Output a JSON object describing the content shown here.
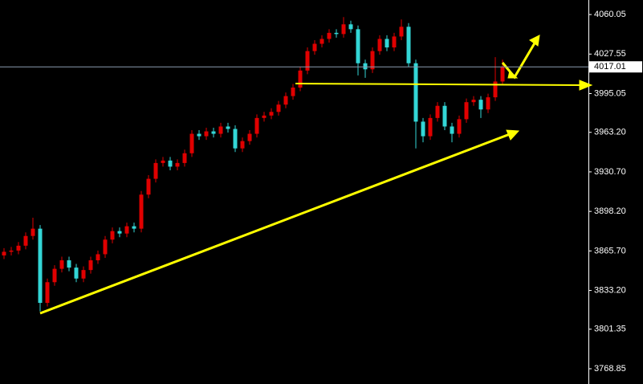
{
  "chart_data": {
    "type": "candlestick",
    "up_color": "#e00000",
    "down_color": "#33d6d6",
    "open": [
      3862,
      3865,
      3866,
      3870,
      3878,
      3884,
      3823,
      3840,
      3851,
      3858,
      3852,
      3843,
      3850,
      3858,
      3863,
      3875,
      3882,
      3880,
      3886,
      3884,
      3912,
      3925,
      3938,
      3940,
      3935,
      3938,
      3946,
      3962,
      3960,
      3964,
      3962,
      3968,
      3966,
      3950,
      3956,
      3962,
      3975,
      3977,
      3980,
      3986,
      3993,
      4000,
      4014,
      4030,
      4036,
      4040,
      4045,
      4044,
      4052,
      4048,
      4020,
      4015,
      4030,
      4040,
      4033,
      4042,
      4050,
      4020,
      3972,
      3960,
      3975,
      3985,
      3968,
      3962,
      3974,
      3988,
      3990,
      3982,
      3992,
      4005
    ],
    "high": [
      3868,
      3869,
      3873,
      3881,
      3893,
      3887,
      3843,
      3854,
      3861,
      3861,
      3855,
      3853,
      3861,
      3866,
      3878,
      3885,
      3885,
      3889,
      3889,
      3915,
      3928,
      3941,
      3943,
      3943,
      3941,
      3949,
      3965,
      3965,
      3967,
      3967,
      3971,
      3971,
      3969,
      3959,
      3965,
      3978,
      3980,
      3983,
      3989,
      3996,
      4003,
      4017,
      4033,
      4039,
      4043,
      4048,
      4048,
      4058,
      4055,
      4051,
      4023,
      4033,
      4043,
      4043,
      4045,
      4056,
      4053,
      4023,
      3975,
      3978,
      3988,
      3988,
      3971,
      3977,
      3991,
      3993,
      3993,
      3995,
      4025,
      4023
    ],
    "low": [
      3859,
      3862,
      3863,
      3867,
      3875,
      3816,
      3820,
      3837,
      3848,
      3849,
      3840,
      3840,
      3847,
      3855,
      3860,
      3872,
      3877,
      3877,
      3881,
      3881,
      3909,
      3922,
      3935,
      3932,
      3932,
      3935,
      3943,
      3957,
      3957,
      3959,
      3959,
      3963,
      3947,
      3947,
      3953,
      3959,
      3972,
      3974,
      3977,
      3983,
      3990,
      3997,
      4011,
      4027,
      4033,
      4037,
      4041,
      4041,
      4045,
      4010,
      4008,
      4012,
      4027,
      4030,
      4030,
      4039,
      4017,
      3950,
      3955,
      3957,
      3972,
      3965,
      3955,
      3959,
      3971,
      3985,
      3975,
      3979,
      3989,
      4002
    ],
    "close": [
      3865,
      3866,
      3870,
      3878,
      3884,
      3823,
      3840,
      3851,
      3858,
      3852,
      3843,
      3850,
      3858,
      3863,
      3875,
      3882,
      3880,
      3886,
      3884,
      3912,
      3925,
      3938,
      3940,
      3935,
      3938,
      3946,
      3962,
      3960,
      3964,
      3962,
      3968,
      3966,
      3950,
      3956,
      3962,
      3975,
      3977,
      3980,
      3986,
      3993,
      4000,
      4014,
      4030,
      4036,
      4040,
      4045,
      4044,
      4052,
      4048,
      4020,
      4015,
      4030,
      4040,
      4033,
      4042,
      4050,
      4020,
      3972,
      3960,
      3975,
      3985,
      3968,
      3962,
      3974,
      3988,
      3990,
      3982,
      3992,
      4005,
      4017.01
    ],
    "ylim": [
      3756.3,
      4072.0
    ],
    "yticks": [
      4060.05,
      4027.55,
      3995.05,
      {
        "value": 3963.2,
        "label": "3963.20"
      },
      {
        "value": 3930.7,
        "label": "3930.70"
      },
      {
        "value": 3898.2,
        "label": "3898.20"
      },
      {
        "value": 3865.7,
        "label": "3865.70"
      },
      {
        "value": 3833.2,
        "label": "3833.20"
      },
      3801.35,
      3768.85
    ],
    "current_price": 4017.01
  }
}
